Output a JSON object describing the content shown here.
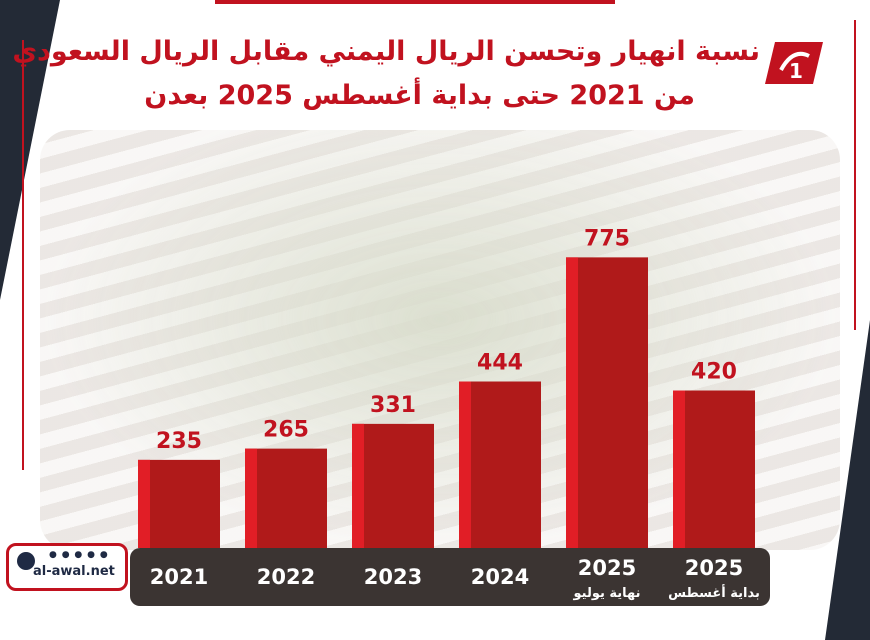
{
  "title": {
    "line1": "نسبة انهيار وتحسن الريال اليمني مقابل الريال السعودي",
    "line2": "من 2021  حتى بداية أغسطس 2025 بعدن"
  },
  "badge": {
    "site": "al-awal.net"
  },
  "colors": {
    "bar_main": "#b01a1a",
    "bar_side": "#e11e26",
    "title": "#c1121f",
    "axis_bg": "#3b3432",
    "value_label": "#c1121f",
    "tick_label": "#ffffff"
  },
  "chart_data": {
    "type": "bar",
    "title": "نسبة انهيار وتحسن الريال اليمني مقابل الريال السعودي من 2021  حتى بداية أغسطس 2025 بعدن",
    "categories": [
      "2021",
      "2022",
      "2023",
      "2024",
      "2025",
      "2025"
    ],
    "sublabels": [
      "",
      "",
      "",
      "",
      "نهاية يوليو",
      "بداية أغسطس"
    ],
    "values": [
      235,
      265,
      331,
      444,
      775,
      420
    ],
    "xlabel": "",
    "ylabel": "",
    "ylim": [
      0,
      800
    ],
    "grid": false,
    "legend": "none"
  }
}
